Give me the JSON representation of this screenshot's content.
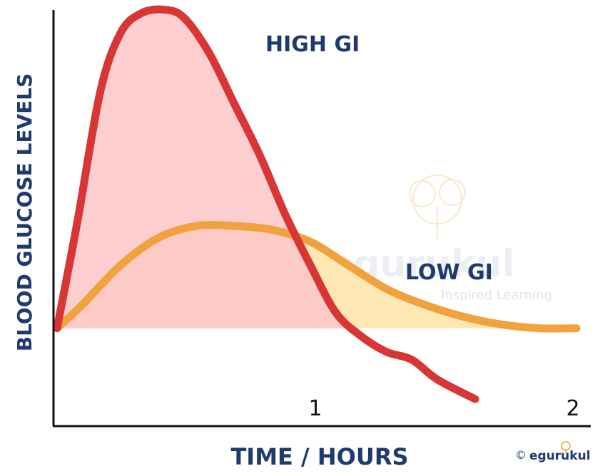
{
  "chart_data": {
    "type": "line",
    "title": "",
    "xlabel": "TIME / HOURS",
    "ylabel": "BLOOD GLUCOSE LEVELS",
    "x_ticks": [
      "1",
      "2"
    ],
    "xlim": [
      0,
      2.05
    ],
    "ylim": [
      0,
      100
    ],
    "grid": false,
    "series": [
      {
        "name": "HIGH GI",
        "color": "#d83535",
        "fill": "#fcc6c8",
        "x": [
          0,
          0.08,
          0.17,
          0.25,
          0.33,
          0.42,
          0.5,
          0.6,
          0.7,
          0.8,
          0.9,
          1.0,
          1.1,
          1.2,
          1.3,
          1.4,
          1.5,
          1.65
        ],
        "y": [
          18,
          45,
          78,
          93,
          98,
          99,
          97,
          88,
          75,
          62,
          47,
          34,
          22,
          16,
          12,
          10,
          5,
          0
        ]
      },
      {
        "name": "LOW GI",
        "color": "#f1a13d",
        "fill": "#fde7b2",
        "x": [
          0,
          0.1,
          0.25,
          0.4,
          0.55,
          0.7,
          0.85,
          1.0,
          1.15,
          1.3,
          1.45,
          1.6,
          1.75,
          1.9,
          2.05
        ],
        "y": [
          18,
          24,
          34,
          41,
          44,
          44,
          43,
          40,
          34,
          28,
          24,
          21,
          19,
          18,
          18
        ]
      }
    ]
  },
  "watermark": {
    "brand": "egurukul",
    "tagline": "Inspired Learning"
  },
  "copyright": {
    "symbol": "©",
    "brand": "egurukul"
  }
}
